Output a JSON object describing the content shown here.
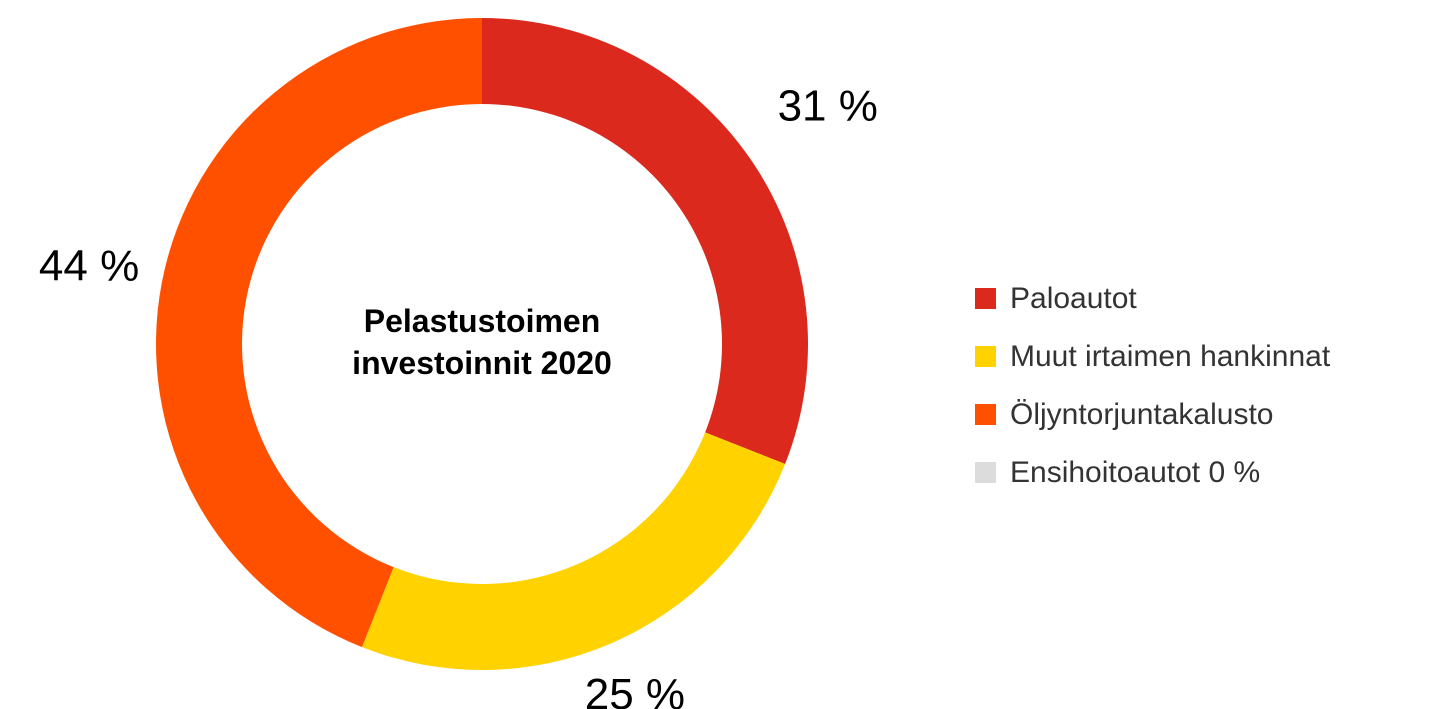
{
  "chart_data": {
    "type": "donut",
    "title": "Pelastustoimen investoinnit 2020",
    "categories": [
      "Paloautot",
      "Muut irtaimen hankinnat",
      "Öljyntorjuntakalusto",
      "Ensihoitoautot 0 %"
    ],
    "values": [
      31,
      25,
      44,
      0
    ],
    "value_labels": [
      "31 %",
      "25 %",
      "44 %",
      null
    ],
    "colors": [
      "#dc291e",
      "#ffd200",
      "#ff5000",
      "#dcdcdc"
    ],
    "legend": "right"
  }
}
